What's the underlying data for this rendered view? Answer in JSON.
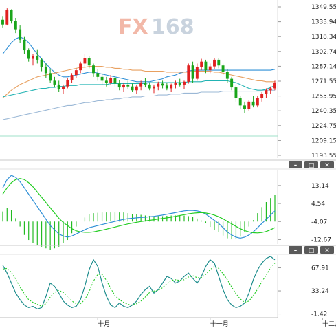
{
  "watermark": {
    "brand_a": "FX",
    "brand_b": "168"
  },
  "colors": {
    "up": "#e02020",
    "down": "#1aa51a",
    "wick": "#222222",
    "ma_short": "#2e8fd6",
    "ma_mid": "#e8a060",
    "ma_long": "#9bb8d6",
    "ma_teal": "#22b3b3",
    "hist": "#22bb22",
    "dif": "#2e8fd6",
    "dea": "#22cc22",
    "k_line": "#1c8c8c",
    "d_line": "#22cc22",
    "ctrl_bg": "#5a5a5a",
    "ctrl_fg": "#ffffff"
  },
  "panel_controls": [
    {
      "name": "minimize",
      "symbol": "–"
    },
    {
      "name": "restore",
      "symbol": "□"
    },
    {
      "name": "close",
      "symbol": "✕"
    }
  ],
  "chart_data": [
    {
      "type": "candlestick",
      "y_ticks": [
        "1349.55",
        "1333.94",
        "1318.34",
        "1302.74",
        "1287.14",
        "1271.55",
        "1255.95",
        "1240.35",
        "1224.75",
        "1209.15",
        "1193.55"
      ],
      "ylim": [
        1193.55,
        1349.55
      ],
      "x_labels": [
        {
          "text": "十月",
          "index": 22
        },
        {
          "text": "十一月",
          "index": 48
        },
        {
          "text": "十二月",
          "index": 74
        }
      ],
      "candles": [
        [
          1336,
          1340,
          1328,
          1331
        ],
        [
          1331,
          1348,
          1330,
          1346
        ],
        [
          1346,
          1347,
          1332,
          1335
        ],
        [
          1335,
          1338,
          1322,
          1326
        ],
        [
          1326,
          1330,
          1312,
          1315
        ],
        [
          1315,
          1318,
          1300,
          1304
        ],
        [
          1304,
          1306,
          1292,
          1295
        ],
        [
          1295,
          1300,
          1288,
          1298
        ],
        [
          1298,
          1305,
          1290,
          1294
        ],
        [
          1294,
          1296,
          1282,
          1286
        ],
        [
          1286,
          1290,
          1275,
          1280
        ],
        [
          1280,
          1284,
          1270,
          1272
        ],
        [
          1272,
          1276,
          1265,
          1268
        ],
        [
          1268,
          1272,
          1260,
          1263
        ],
        [
          1263,
          1268,
          1258,
          1266
        ],
        [
          1266,
          1275,
          1264,
          1273
        ],
        [
          1273,
          1280,
          1270,
          1278
        ],
        [
          1278,
          1285,
          1275,
          1283
        ],
        [
          1283,
          1292,
          1280,
          1290
        ],
        [
          1290,
          1300,
          1286,
          1296
        ],
        [
          1296,
          1298,
          1285,
          1288
        ],
        [
          1288,
          1290,
          1276,
          1280
        ],
        [
          1280,
          1284,
          1272,
          1276
        ],
        [
          1276,
          1280,
          1268,
          1272
        ],
        [
          1272,
          1276,
          1266,
          1270
        ],
        [
          1270,
          1278,
          1268,
          1275
        ],
        [
          1275,
          1277,
          1266,
          1269
        ],
        [
          1269,
          1273,
          1262,
          1265
        ],
        [
          1265,
          1270,
          1260,
          1268
        ],
        [
          1268,
          1272,
          1263,
          1266
        ],
        [
          1266,
          1269,
          1260,
          1262
        ],
        [
          1262,
          1268,
          1258,
          1266
        ],
        [
          1266,
          1272,
          1262,
          1270
        ],
        [
          1270,
          1275,
          1265,
          1268
        ],
        [
          1268,
          1270,
          1262,
          1264
        ],
        [
          1264,
          1268,
          1259,
          1266
        ],
        [
          1266,
          1271,
          1262,
          1269
        ],
        [
          1269,
          1272,
          1264,
          1267
        ],
        [
          1267,
          1270,
          1262,
          1264
        ],
        [
          1264,
          1269,
          1260,
          1268
        ],
        [
          1268,
          1272,
          1264,
          1270
        ],
        [
          1270,
          1274,
          1266,
          1268
        ],
        [
          1268,
          1272,
          1263,
          1271
        ],
        [
          1271,
          1290,
          1269,
          1288
        ],
        [
          1288,
          1292,
          1270,
          1274
        ],
        [
          1274,
          1290,
          1272,
          1286
        ],
        [
          1286,
          1295,
          1283,
          1292
        ],
        [
          1292,
          1294,
          1280,
          1283
        ],
        [
          1283,
          1290,
          1280,
          1287
        ],
        [
          1287,
          1296,
          1284,
          1294
        ],
        [
          1294,
          1296,
          1285,
          1288
        ],
        [
          1288,
          1290,
          1278,
          1281
        ],
        [
          1281,
          1284,
          1270,
          1274
        ],
        [
          1274,
          1276,
          1262,
          1265
        ],
        [
          1265,
          1267,
          1250,
          1254
        ],
        [
          1254,
          1256,
          1242,
          1246
        ],
        [
          1246,
          1250,
          1238,
          1242
        ],
        [
          1242,
          1252,
          1240,
          1250
        ],
        [
          1250,
          1256,
          1244,
          1246
        ],
        [
          1246,
          1256,
          1244,
          1254
        ],
        [
          1254,
          1260,
          1250,
          1258
        ],
        [
          1258,
          1264,
          1254,
          1262
        ],
        [
          1262,
          1266,
          1258,
          1264
        ],
        [
          1264,
          1272,
          1262,
          1270
        ]
      ],
      "moving_averages": [
        {
          "name": "ma_short",
          "values": [
            1300,
            1306,
            1312,
            1316,
            1318,
            1316,
            1312,
            1306,
            1300,
            1295,
            1290,
            1285,
            1281,
            1278,
            1276,
            1276,
            1277,
            1278,
            1279,
            1280,
            1281,
            1281,
            1280,
            1279,
            1278,
            1277,
            1276,
            1275,
            1274,
            1273,
            1272,
            1271,
            1271,
            1271,
            1271,
            1272,
            1273,
            1274,
            1276,
            1277,
            1278,
            1280,
            1281,
            1282,
            1283,
            1283,
            1283,
            1283,
            1283,
            1283,
            1283,
            1283,
            1283,
            1283,
            1283,
            1283,
            1283,
            1283,
            1283,
            1283,
            1283,
            1283,
            1283,
            1284
          ]
        },
        {
          "name": "ma_mid",
          "values": [
            1254,
            1258,
            1262,
            1265,
            1268,
            1270,
            1272,
            1274,
            1276,
            1277,
            1278,
            1279,
            1280,
            1281,
            1282,
            1283,
            1284,
            1285,
            1286,
            1286,
            1287,
            1287,
            1287,
            1287,
            1286,
            1286,
            1285,
            1285,
            1284,
            1284,
            1283,
            1283,
            1283,
            1282,
            1282,
            1282,
            1282,
            1282,
            1281,
            1281,
            1281,
            1281,
            1281,
            1281,
            1282,
            1282,
            1282,
            1282,
            1282,
            1281,
            1281,
            1280,
            1279,
            1278,
            1277,
            1276,
            1275,
            1274,
            1273,
            1272,
            1272,
            1271,
            1271,
            1271
          ]
        },
        {
          "name": "ma_teal",
          "values": [
            1255,
            1256,
            1257,
            1258,
            1259,
            1260,
            1261,
            1262,
            1263,
            1264,
            1264,
            1265,
            1265,
            1266,
            1266,
            1267,
            1267,
            1267,
            1268,
            1268,
            1268,
            1268,
            1268,
            1268,
            1268,
            1269,
            1269,
            1269,
            1269,
            1269,
            1269,
            1269,
            1269,
            1269,
            1270,
            1270,
            1270,
            1270,
            1270,
            1270,
            1270,
            1270,
            1270,
            1271,
            1271,
            1271,
            1271,
            1272,
            1272,
            1272,
            1272,
            1272,
            1272,
            1271,
            1270,
            1268,
            1266,
            1264,
            1263,
            1262,
            1262,
            1263,
            1265,
            1267
          ]
        },
        {
          "name": "ma_long",
          "values": [
            1231,
            1232,
            1233,
            1234,
            1235,
            1236,
            1237,
            1238,
            1239,
            1240,
            1241,
            1242,
            1243,
            1244,
            1245,
            1246,
            1246,
            1247,
            1248,
            1249,
            1249,
            1250,
            1251,
            1251,
            1252,
            1252,
            1253,
            1253,
            1254,
            1254,
            1255,
            1255,
            1255,
            1256,
            1256,
            1256,
            1257,
            1257,
            1257,
            1258,
            1258,
            1258,
            1259,
            1259,
            1259,
            1259,
            1260,
            1260,
            1260,
            1260,
            1260,
            1261,
            1261,
            1261,
            1261,
            1261,
            1261,
            1261,
            1261,
            1261,
            1261,
            1262,
            1262,
            1262
          ]
        }
      ]
    },
    {
      "type": "macd",
      "y_ticks": [
        "13.14",
        "4.54",
        "-4.07",
        "-12.67"
      ],
      "ylim": [
        -14.5,
        20
      ],
      "dif": [
        12,
        16,
        18,
        17,
        15,
        12,
        9,
        6,
        3,
        0,
        -3,
        -6,
        -8,
        -10,
        -11,
        -11.5,
        -11,
        -10,
        -9,
        -8,
        -7,
        -6.5,
        -6,
        -5.5,
        -5,
        -4.5,
        -4,
        -3.5,
        -3,
        -2.7,
        -2.5,
        -2.3,
        -2.1,
        -2,
        -1.8,
        -1.6,
        -1.3,
        -1,
        -0.6,
        -0.2,
        0.2,
        0.6,
        1,
        1.2,
        1.2,
        1,
        0.5,
        -0.5,
        -2,
        -3.5,
        -5,
        -7,
        -9,
        -10.5,
        -11.5,
        -12,
        -11.5,
        -10.5,
        -9,
        -7,
        -5,
        -3,
        -1,
        1
      ],
      "dea": [
        9,
        12,
        14.5,
        16,
        16.5,
        16,
        14.5,
        12.5,
        10,
        7.5,
        5,
        2.5,
        0,
        -2.5,
        -4.5,
        -6,
        -7.5,
        -8.5,
        -9,
        -9.2,
        -9.2,
        -9,
        -8.6,
        -8.2,
        -7.7,
        -7.2,
        -6.7,
        -6.2,
        -5.7,
        -5.2,
        -4.8,
        -4.4,
        -4.1,
        -3.8,
        -3.5,
        -3.2,
        -2.9,
        -2.6,
        -2.3,
        -2,
        -1.6,
        -1.2,
        -0.8,
        -0.4,
        -0.1,
        0.1,
        0.2,
        0,
        -0.4,
        -1,
        -1.8,
        -2.8,
        -4,
        -5.2,
        -6.4,
        -7.5,
        -8.4,
        -9,
        -9.4,
        -9.5,
        -9.3,
        -8.8,
        -8,
        -7
      ]
    },
    {
      "type": "kdj",
      "y_ticks": [
        "67.91",
        "33.24",
        "-1.42"
      ],
      "ylim": [
        -5,
        85
      ],
      "k": [
        72,
        60,
        45,
        30,
        20,
        12,
        8,
        10,
        6,
        8,
        25,
        45,
        40,
        30,
        18,
        12,
        8,
        10,
        20,
        40,
        65,
        80,
        70,
        45,
        25,
        12,
        8,
        15,
        10,
        8,
        12,
        18,
        28,
        35,
        40,
        30,
        35,
        45,
        55,
        52,
        45,
        48,
        55,
        60,
        52,
        45,
        55,
        70,
        80,
        75,
        55,
        35,
        20,
        12,
        8,
        10,
        15,
        30,
        50,
        65,
        75,
        82,
        85,
        80
      ],
      "d": [
        66,
        67,
        61,
        51,
        39,
        29,
        20,
        16,
        13,
        10,
        14,
        24,
        31,
        34,
        31,
        25,
        18,
        14,
        14,
        20,
        32,
        48,
        58,
        58,
        49,
        37,
        26,
        20,
        16,
        13,
        12,
        14,
        18,
        24,
        31,
        33,
        34,
        38,
        44,
        49,
        50,
        49,
        50,
        54,
        56,
        53,
        53,
        58,
        65,
        70,
        67,
        59,
        50,
        39,
        29,
        21,
        16,
        18,
        26,
        36,
        47,
        57,
        68,
        75
      ]
    }
  ]
}
